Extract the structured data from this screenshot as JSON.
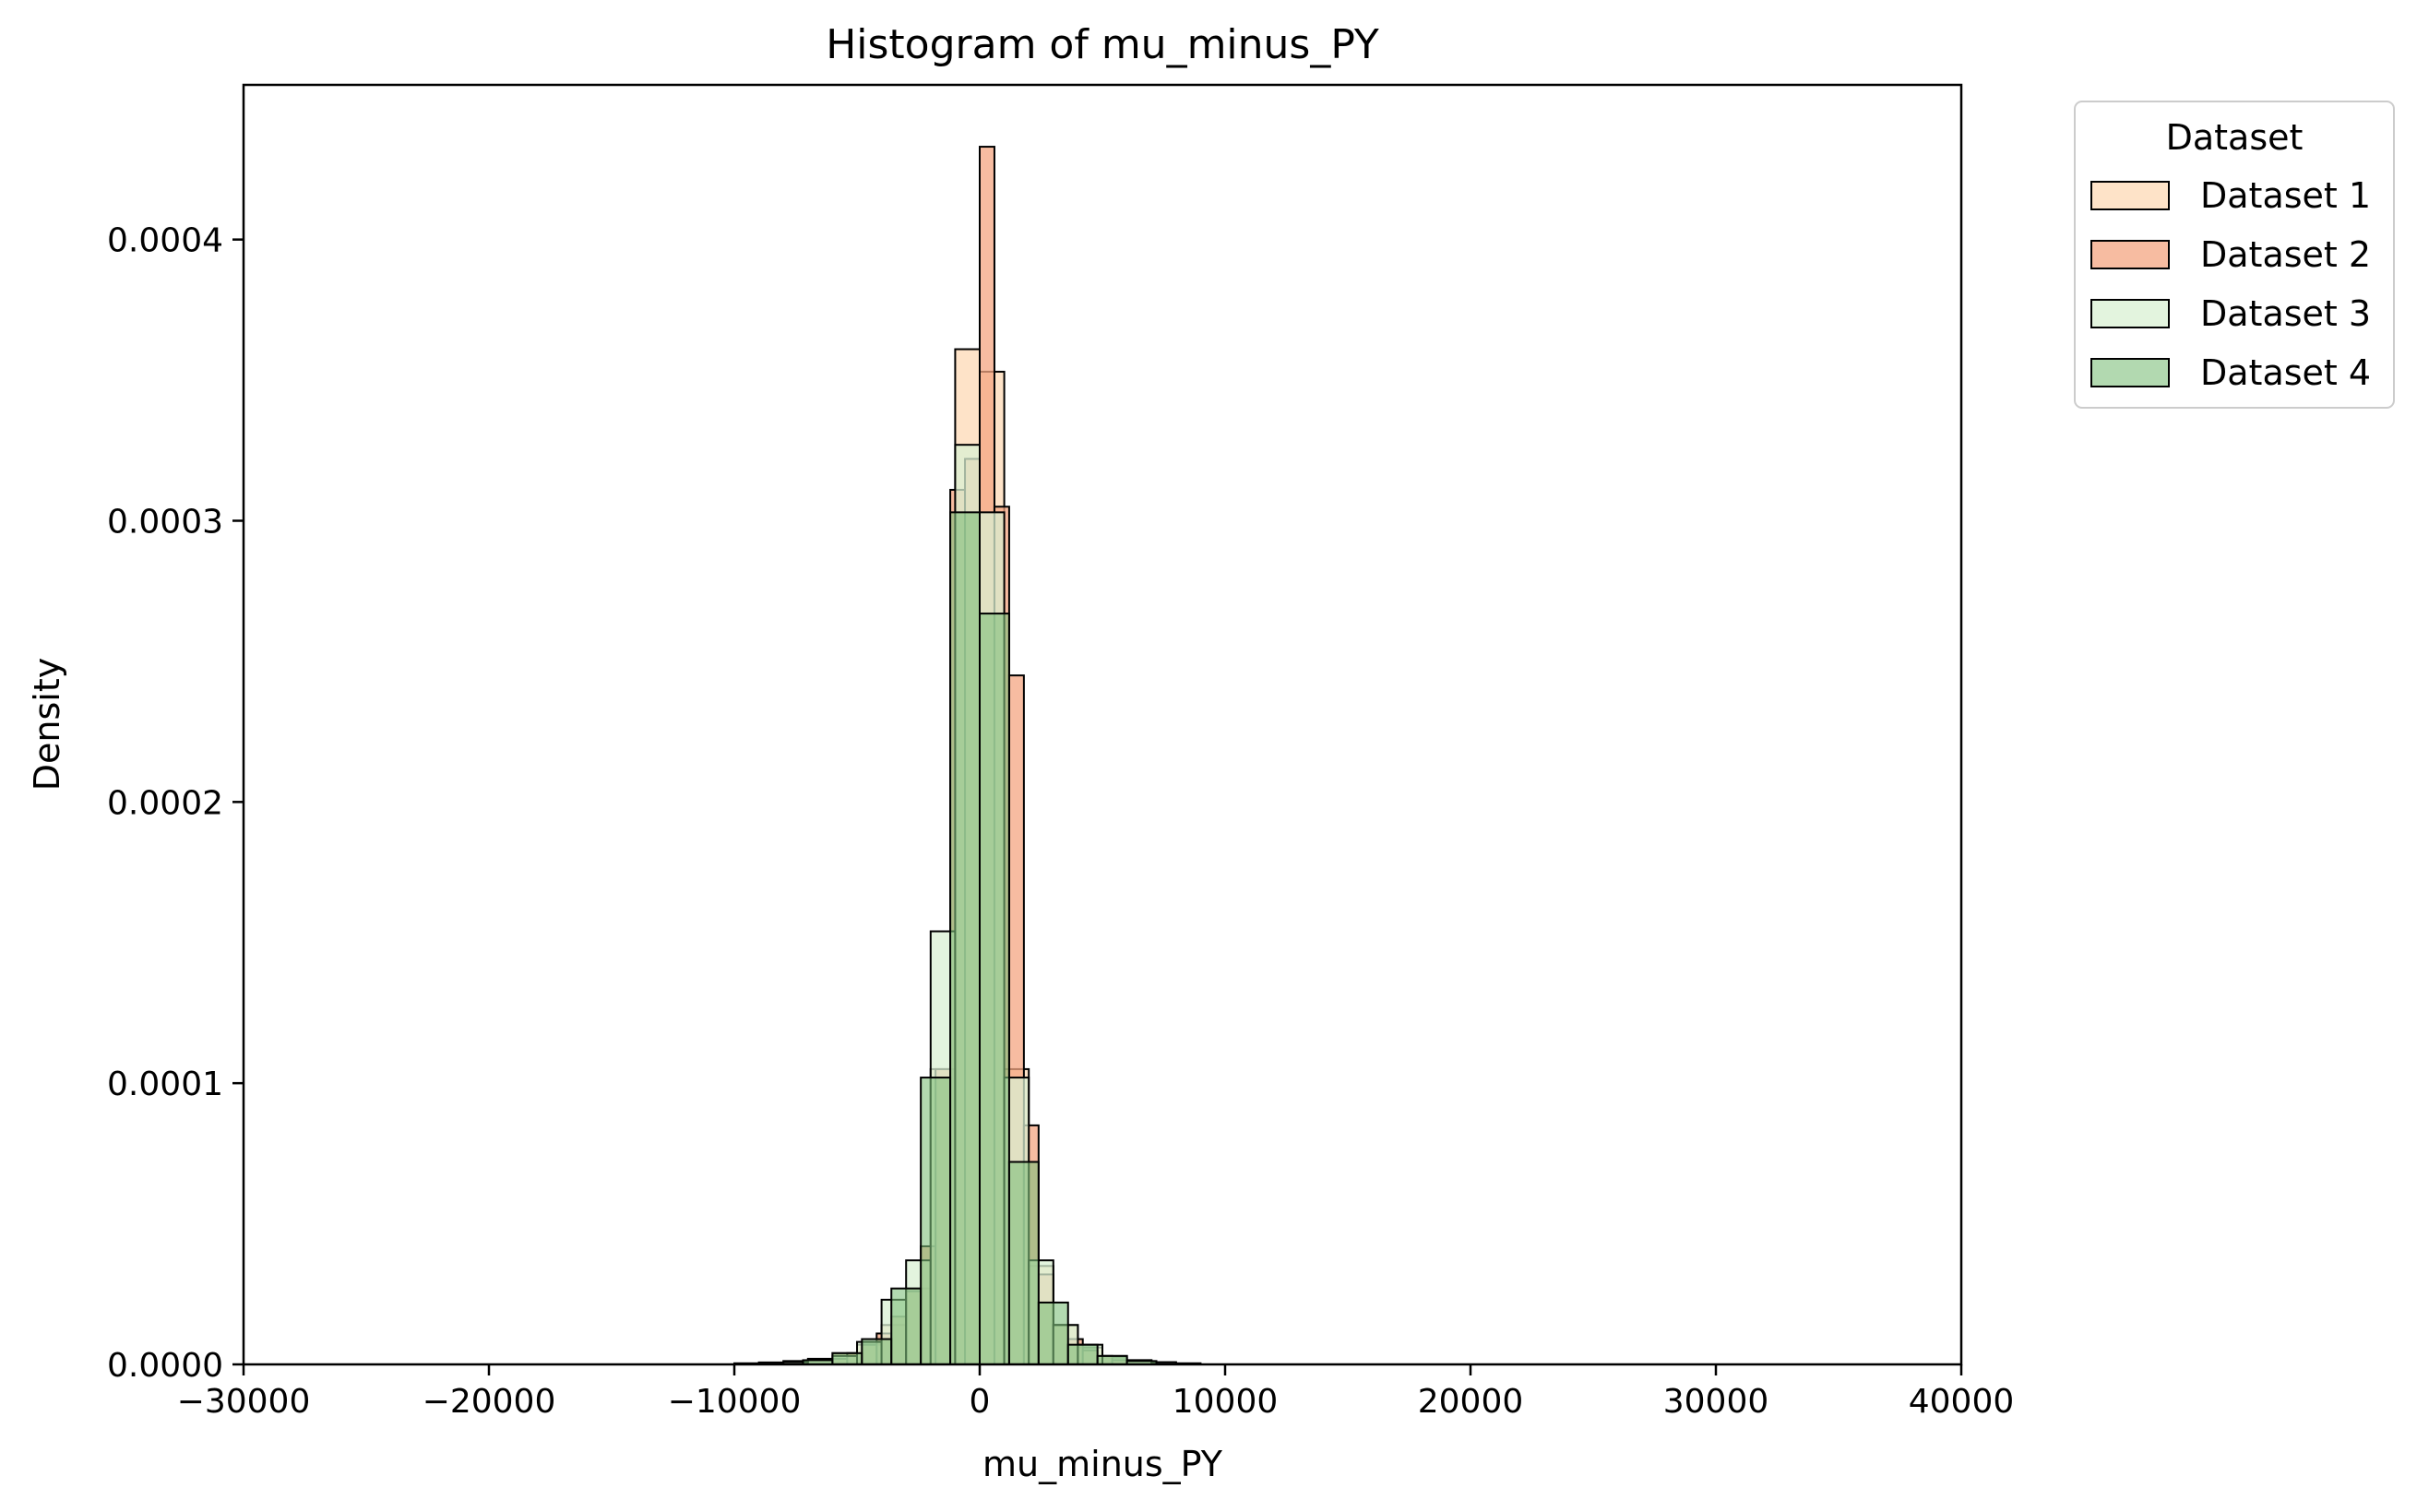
{
  "chart_data": {
    "type": "bar",
    "title": "Histogram of mu_minus_PY",
    "xlabel": "mu_minus_PY",
    "ylabel": "Density",
    "xlim": [
      -30000,
      40000
    ],
    "ylim": [
      0,
      0.000455
    ],
    "xticks": [
      -30000,
      -20000,
      -10000,
      0,
      10000,
      20000,
      30000,
      40000
    ],
    "xtick_labels": [
      "−30000",
      "−20000",
      "−10000",
      "0",
      "10000",
      "20000",
      "30000",
      "40000"
    ],
    "yticks": [
      0,
      0.0001,
      0.0002,
      0.0003,
      0.0004
    ],
    "ytick_labels": [
      "0.0000",
      "0.0001",
      "0.0002",
      "0.0003",
      "0.0004"
    ],
    "grid": false,
    "legend": {
      "title": "Dataset",
      "placement": "outside-top-right"
    },
    "series": [
      {
        "name": "Dataset 1",
        "color": "#fdd9b5",
        "opacity": 0.75,
        "bins": [
          [
            -10000,
            -9000,
            4e-07
          ],
          [
            -9000,
            -8000,
            7e-07
          ],
          [
            -8000,
            -7000,
            1.2e-06
          ],
          [
            -7000,
            -6000,
            2e-06
          ],
          [
            -6000,
            -5000,
            4e-06
          ],
          [
            -5000,
            -4000,
            7e-06
          ],
          [
            -4000,
            -3000,
            1.4e-05
          ],
          [
            -3000,
            -2000,
            2.7e-05
          ],
          [
            -2000,
            -1000,
            0.000105
          ],
          [
            -1000,
            0,
            0.000361
          ],
          [
            0,
            1000,
            0.000353
          ],
          [
            1000,
            2000,
            0.000105
          ],
          [
            2000,
            3000,
            3.5e-05
          ],
          [
            3000,
            4000,
            1.4e-05
          ],
          [
            4000,
            5000,
            6e-06
          ],
          [
            5000,
            6000,
            2.5e-06
          ],
          [
            6000,
            7000,
            1.5e-06
          ],
          [
            7000,
            8000,
            8e-07
          ],
          [
            8000,
            9000,
            4e-07
          ]
        ]
      },
      {
        "name": "Dataset 2",
        "color": "#f4a582",
        "opacity": 0.75,
        "bins": [
          [
            -6000,
            -5400,
            2e-06
          ],
          [
            -5400,
            -4800,
            4e-06
          ],
          [
            -4800,
            -4200,
            7e-06
          ],
          [
            -4200,
            -3600,
            1.1e-05
          ],
          [
            -3600,
            -3000,
            1.7e-05
          ],
          [
            -3000,
            -2400,
            2.6e-05
          ],
          [
            -2400,
            -1800,
            4.2e-05
          ],
          [
            -1800,
            -1200,
            0.000105
          ],
          [
            -1200,
            -600,
            0.000311
          ],
          [
            -600,
            0,
            0.000322
          ],
          [
            0,
            600,
            0.000433
          ],
          [
            600,
            1200,
            0.000305
          ],
          [
            1200,
            1800,
            0.000245
          ],
          [
            1800,
            2400,
            8.5e-05
          ],
          [
            2400,
            3000,
            3.2e-05
          ],
          [
            3000,
            3600,
            1.4e-05
          ],
          [
            3600,
            4200,
            9e-06
          ],
          [
            4200,
            4800,
            5e-06
          ],
          [
            4800,
            5400,
            3e-06
          ],
          [
            5400,
            6000,
            1.5e-06
          ]
        ]
      },
      {
        "name": "Dataset 3",
        "color": "#d9f0d3",
        "opacity": 0.75,
        "bins": [
          [
            -9000,
            -8000,
            4e-07
          ],
          [
            -8000,
            -7000,
            8e-07
          ],
          [
            -7000,
            -6000,
            1.5e-06
          ],
          [
            -6000,
            -5000,
            3e-06
          ],
          [
            -5000,
            -4000,
            8e-06
          ],
          [
            -4000,
            -3000,
            2.3e-05
          ],
          [
            -3000,
            -2000,
            3.7e-05
          ],
          [
            -2000,
            -1000,
            0.000154
          ],
          [
            -1000,
            0,
            0.000327
          ],
          [
            0,
            1000,
            0.000303
          ],
          [
            1000,
            2000,
            0.000102
          ],
          [
            2000,
            3000,
            3.7e-05
          ],
          [
            3000,
            4000,
            1.4e-05
          ],
          [
            4000,
            5000,
            7e-06
          ],
          [
            5000,
            6000,
            3e-06
          ],
          [
            6000,
            7000,
            1.5e-06
          ],
          [
            7000,
            8000,
            7e-07
          ]
        ]
      },
      {
        "name": "Dataset 4",
        "color": "#7fbf7b",
        "opacity": 0.6,
        "bins": [
          [
            -7200,
            -6000,
            1.5e-06
          ],
          [
            -6000,
            -4800,
            4e-06
          ],
          [
            -4800,
            -3600,
            9e-06
          ],
          [
            -3600,
            -2400,
            2.7e-05
          ],
          [
            -2400,
            -1200,
            0.000102
          ],
          [
            -1200,
            0,
            0.000303
          ],
          [
            0,
            1200,
            0.000267
          ],
          [
            1200,
            2400,
            7.2e-05
          ],
          [
            2400,
            3600,
            2.2e-05
          ],
          [
            3600,
            4800,
            7e-06
          ],
          [
            4800,
            6000,
            3e-06
          ],
          [
            6000,
            7200,
            1.2e-06
          ]
        ]
      }
    ]
  }
}
